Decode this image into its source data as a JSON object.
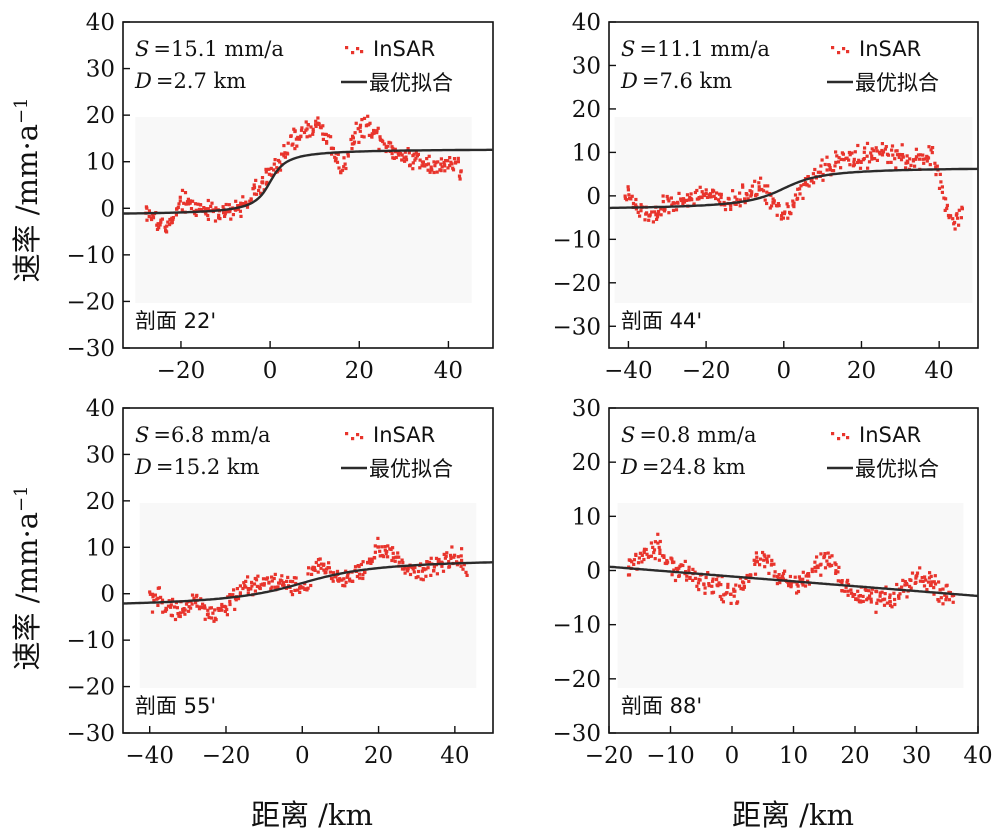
{
  "colors": {
    "insar": "#e8342c",
    "fit": "#2b2b2b",
    "panel_bg": "#f8f8f8",
    "axis": "#111111"
  },
  "shared": {
    "ylabel": "速率 /mm·a",
    "ylabel_sup": "−1",
    "xlabel": "距离 /km",
    "legend_insar": "InSAR",
    "legend_fit": "最优拟合"
  },
  "chart_data": [
    {
      "type": "scatter",
      "profile_label": "剖面 22'",
      "s_label": "S",
      "s_value": "=15.1 mm/a",
      "d_label": "D",
      "d_value": "=2.7 km",
      "xlim": [
        -33,
        50
      ],
      "ylim": [
        -30,
        40
      ],
      "xticks": [
        -20,
        0,
        20,
        40
      ],
      "yticks": [
        -30,
        -20,
        -10,
        0,
        10,
        20,
        30,
        40
      ],
      "x_range": [
        -28,
        43
      ],
      "anchors": [
        [
          -28,
          -0.5
        ],
        [
          -24,
          -4
        ],
        [
          -22,
          -3
        ],
        [
          -20,
          1.5
        ],
        [
          -16,
          0
        ],
        [
          -12,
          -0.5
        ],
        [
          -8,
          -1
        ],
        [
          -4,
          3
        ],
        [
          -1,
          6
        ],
        [
          2,
          10
        ],
        [
          5,
          14
        ],
        [
          8,
          17
        ],
        [
          11,
          18
        ],
        [
          14,
          13
        ],
        [
          16,
          8
        ],
        [
          19,
          16
        ],
        [
          22,
          18
        ],
        [
          25,
          15
        ],
        [
          28,
          12
        ],
        [
          31,
          11
        ],
        [
          35,
          10
        ],
        [
          38,
          9
        ],
        [
          42,
          10
        ],
        [
          43,
          6
        ]
      ],
      "noise": 2.2,
      "fit": {
        "v_start": -1.5,
        "v_end": 12.8,
        "d": 2.7,
        "x0": 0
      }
    },
    {
      "type": "scatter",
      "profile_label": "剖面 44'",
      "s_label": "S",
      "s_value": "=11.1 mm/a",
      "d_label": "D",
      "d_value": "=7.6 km",
      "xlim": [
        -45,
        50
      ],
      "ylim": [
        -35,
        40
      ],
      "xticks": [
        -40,
        -20,
        0,
        20,
        40
      ],
      "yticks": [
        -30,
        -20,
        -10,
        0,
        10,
        20,
        30,
        40
      ],
      "x_range": [
        -41,
        46
      ],
      "anchors": [
        [
          -41,
          1
        ],
        [
          -38,
          -3
        ],
        [
          -34,
          -5
        ],
        [
          -30,
          -2
        ],
        [
          -25,
          -1
        ],
        [
          -20,
          1
        ],
        [
          -15,
          -2
        ],
        [
          -10,
          0
        ],
        [
          -6,
          2
        ],
        [
          -3,
          -1
        ],
        [
          0,
          -4
        ],
        [
          3,
          -1
        ],
        [
          6,
          3
        ],
        [
          10,
          6
        ],
        [
          14,
          8
        ],
        [
          18,
          9
        ],
        [
          22,
          9
        ],
        [
          26,
          10
        ],
        [
          30,
          9
        ],
        [
          34,
          8
        ],
        [
          38,
          9
        ],
        [
          40,
          5
        ],
        [
          42,
          -3
        ],
        [
          44,
          -6
        ],
        [
          46,
          -4
        ]
      ],
      "noise": 2.2,
      "fit": {
        "v_start": -3.3,
        "v_end": 6.7,
        "d": 7.6,
        "x0": 0
      }
    },
    {
      "type": "scatter",
      "profile_label": "剖面 55'",
      "s_label": "S",
      "s_value": "=6.8 mm/a",
      "d_label": "D",
      "d_value": "=15.2 km",
      "xlim": [
        -47,
        50
      ],
      "ylim": [
        -30,
        40
      ],
      "xticks": [
        -40,
        -20,
        0,
        20,
        40
      ],
      "yticks": [
        -30,
        -20,
        -10,
        0,
        10,
        20,
        30,
        40
      ],
      "x_range": [
        -40,
        43
      ],
      "anchors": [
        [
          -40,
          -1
        ],
        [
          -36,
          -2
        ],
        [
          -32,
          -4
        ],
        [
          -28,
          -1
        ],
        [
          -24,
          -5
        ],
        [
          -20,
          -3
        ],
        [
          -16,
          1
        ],
        [
          -12,
          2
        ],
        [
          -8,
          3
        ],
        [
          -4,
          2
        ],
        [
          0,
          1
        ],
        [
          4,
          6
        ],
        [
          8,
          4
        ],
        [
          12,
          3
        ],
        [
          16,
          5
        ],
        [
          20,
          10
        ],
        [
          23,
          9
        ],
        [
          26,
          6
        ],
        [
          30,
          5
        ],
        [
          34,
          6
        ],
        [
          38,
          7
        ],
        [
          42,
          8
        ],
        [
          43,
          5
        ]
      ],
      "noise": 2.2,
      "fit": {
        "v_start": -3.2,
        "v_end": 7.8,
        "d": 15.2,
        "x0": 0
      }
    },
    {
      "type": "scatter",
      "profile_label": "剖面 88'",
      "s_label": "S",
      "s_value": "=0.8 mm/a",
      "d_label": "D",
      "d_value": "=24.8 km",
      "xlim": [
        -20,
        40
      ],
      "ylim": [
        -30,
        30
      ],
      "xticks": [
        -20,
        -10,
        0,
        10,
        20,
        30,
        40
      ],
      "yticks": [
        -30,
        -20,
        -10,
        0,
        10,
        20,
        30
      ],
      "x_range": [
        -17,
        36
      ],
      "anchors": [
        [
          -17,
          0
        ],
        [
          -14,
          3
        ],
        [
          -12,
          4
        ],
        [
          -10,
          1
        ],
        [
          -8,
          0
        ],
        [
          -5,
          -2
        ],
        [
          -2,
          -3
        ],
        [
          0,
          -5
        ],
        [
          2,
          -2
        ],
        [
          5,
          3
        ],
        [
          7,
          -1
        ],
        [
          9,
          -2
        ],
        [
          11,
          -3
        ],
        [
          14,
          1
        ],
        [
          16,
          2
        ],
        [
          18,
          -3
        ],
        [
          20,
          -4
        ],
        [
          22,
          -5
        ],
        [
          24,
          -5
        ],
        [
          26,
          -6
        ],
        [
          28,
          -3
        ],
        [
          30,
          -1
        ],
        [
          32,
          -2
        ],
        [
          34,
          -4
        ],
        [
          36,
          -6
        ]
      ],
      "noise": 2.0,
      "fit": {
        "v_start": 0.7,
        "v_end": -4.7,
        "d": 24.8,
        "x0": 0,
        "linear": true
      }
    }
  ]
}
